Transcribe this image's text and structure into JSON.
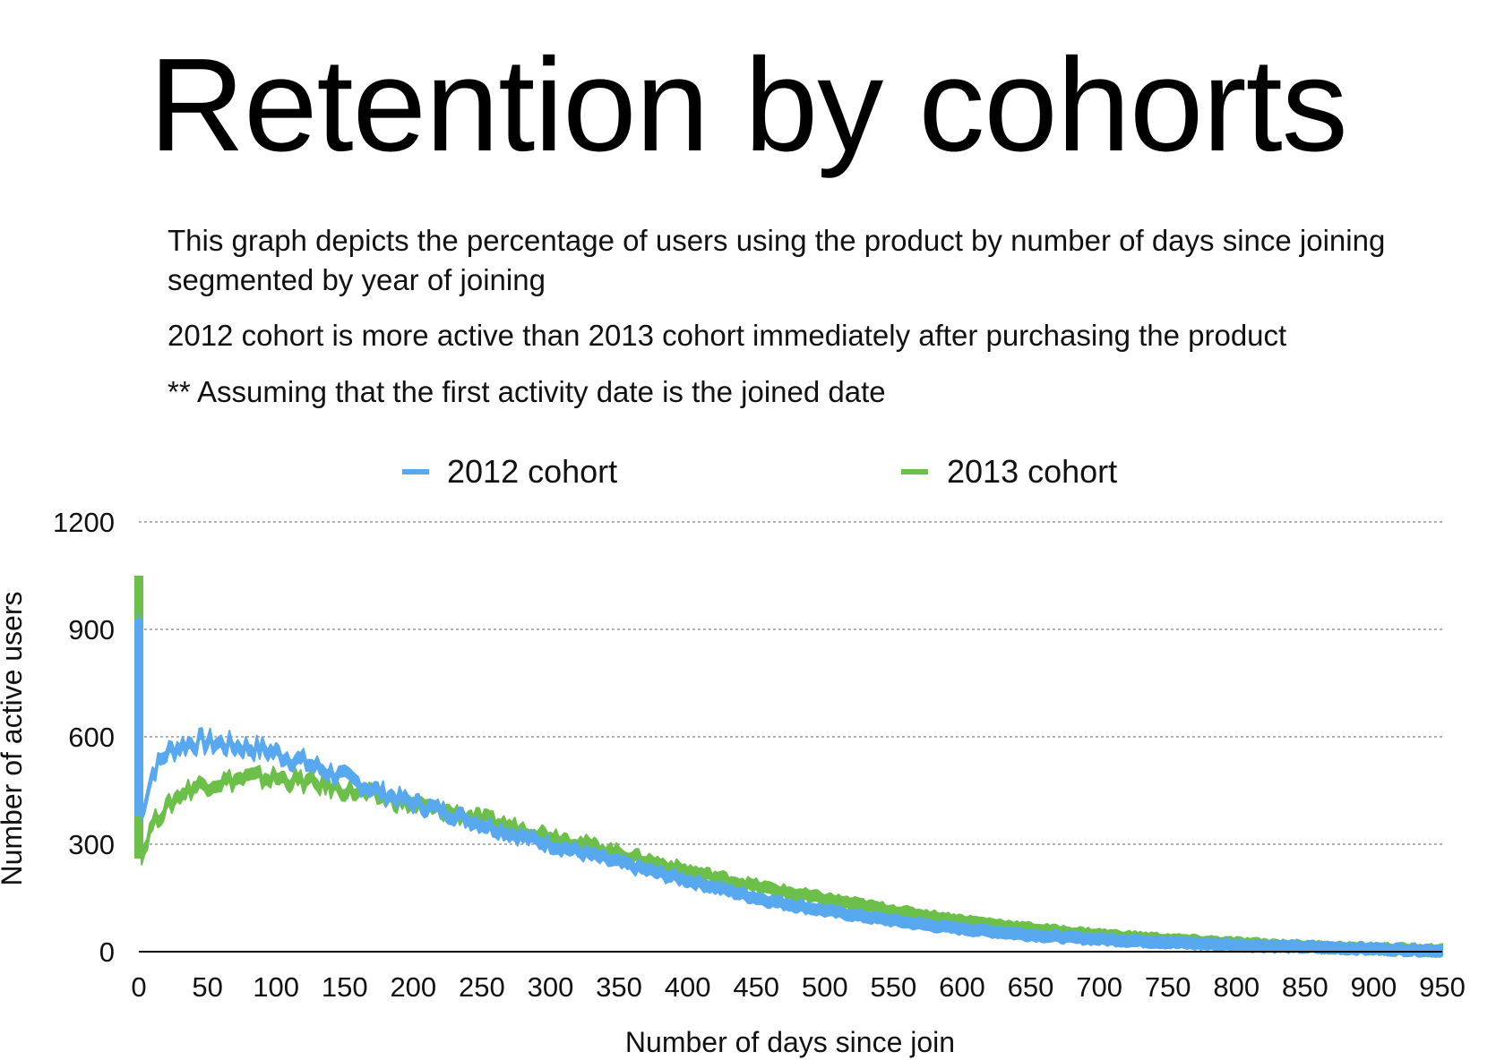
{
  "header": {
    "title": "Retention by cohorts"
  },
  "description": {
    "line1": "This graph depicts the percentage of users using the product by number of days since joining segmented by year of joining",
    "line2": "2012 cohort is more active than 2013 cohort immediately after purchasing the product",
    "line3": "** Assuming that the first activity date is the joined date"
  },
  "colors": {
    "series_2012": "#58a8f0",
    "series_2013": "#6cc04a",
    "grid": "#999999",
    "axis": "#000000"
  },
  "chart_data": {
    "type": "line",
    "xlabel": "Number of days since join",
    "ylabel": "Number of active users",
    "xlim": [
      0,
      950
    ],
    "ylim": [
      0,
      1200
    ],
    "x_ticks": [
      0,
      50,
      100,
      150,
      200,
      250,
      300,
      350,
      400,
      450,
      500,
      550,
      600,
      650,
      700,
      750,
      800,
      850,
      900,
      950
    ],
    "y_ticks": [
      0,
      300,
      600,
      900,
      1200
    ],
    "grid": true,
    "legend": "top-center",
    "series": [
      {
        "name": "2012 cohort",
        "x": [
          0,
          2,
          5,
          10,
          20,
          30,
          40,
          50,
          60,
          70,
          80,
          90,
          100,
          120,
          140,
          160,
          180,
          200,
          220,
          240,
          260,
          280,
          300,
          320,
          340,
          360,
          380,
          400,
          420,
          440,
          460,
          480,
          500,
          520,
          540,
          560,
          580,
          600,
          620,
          640,
          660,
          680,
          700,
          720,
          740,
          760,
          780,
          800,
          820,
          840,
          860,
          880,
          900,
          920,
          940,
          950
        ],
        "values": [
          930,
          380,
          430,
          500,
          555,
          575,
          585,
          585,
          580,
          575,
          570,
          565,
          555,
          530,
          500,
          470,
          440,
          415,
          395,
          370,
          345,
          320,
          300,
          280,
          258,
          238,
          218,
          200,
          180,
          160,
          142,
          128,
          115,
          103,
          92,
          82,
          72,
          64,
          57,
          50,
          44,
          39,
          35,
          31,
          28,
          24,
          21,
          18,
          16,
          14,
          12,
          10,
          8,
          6,
          4,
          3
        ]
      },
      {
        "name": "2013 cohort",
        "x": [
          0,
          2,
          5,
          10,
          20,
          30,
          40,
          50,
          60,
          70,
          80,
          90,
          100,
          120,
          140,
          160,
          180,
          200,
          220,
          240,
          260,
          280,
          300,
          320,
          340,
          360,
          380,
          400,
          420,
          440,
          460,
          480,
          500,
          520,
          540,
          560,
          580,
          600,
          620,
          640,
          660,
          680,
          700,
          720,
          740,
          760,
          780,
          800,
          820,
          840,
          860,
          880,
          900,
          920,
          940,
          950
        ],
        "values": [
          1050,
          260,
          300,
          360,
          400,
          440,
          460,
          470,
          475,
          480,
          485,
          485,
          485,
          475,
          460,
          445,
          428,
          410,
          395,
          378,
          360,
          342,
          325,
          305,
          285,
          265,
          245,
          225,
          208,
          190,
          175,
          160,
          147,
          134,
          121,
          108,
          97,
          86,
          77,
          68,
          60,
          53,
          47,
          41,
          36,
          31,
          27,
          23,
          19,
          16,
          13,
          10,
          8,
          6,
          4,
          3
        ]
      }
    ]
  }
}
